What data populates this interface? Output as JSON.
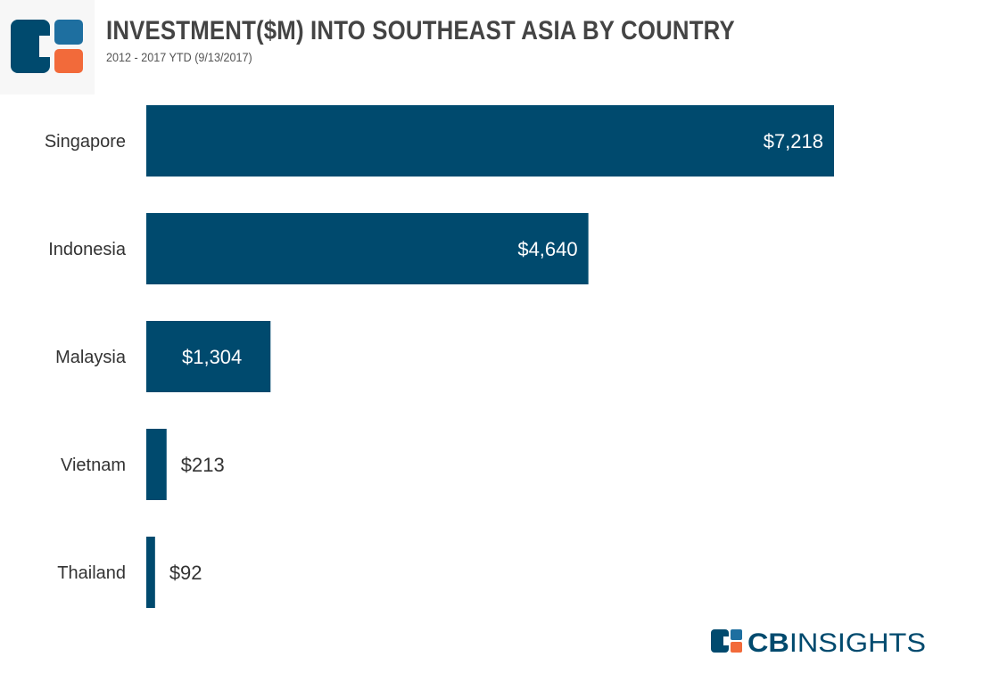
{
  "header": {
    "title": "INVESTMENT($M) INTO SOUTHEAST ASIA BY COUNTRY",
    "subtitle": "2012 - 2017 YTD (9/13/2017)"
  },
  "brand": {
    "wordmark_cb": "CB",
    "wordmark_rest": "INSIGHTS",
    "colors": {
      "navy": "#004A6E",
      "blue": "#1E6FA0",
      "orange": "#F26A3A"
    }
  },
  "chart_data": {
    "type": "bar",
    "orientation": "horizontal",
    "title": "INVESTMENT($M) INTO SOUTHEAST ASIA BY COUNTRY",
    "subtitle": "2012 - 2017 YTD (9/13/2017)",
    "categories": [
      "Singapore",
      "Indonesia",
      "Malaysia",
      "Vietnam",
      "Thailand"
    ],
    "values": [
      7218,
      4640,
      1304,
      213,
      92
    ],
    "value_labels": [
      "$7,218",
      "$4,640",
      "$1,304",
      "$213",
      "$92"
    ],
    "bar_color": "#004A6E",
    "xlim": [
      0,
      7218
    ],
    "grid": false,
    "legend": "none"
  }
}
